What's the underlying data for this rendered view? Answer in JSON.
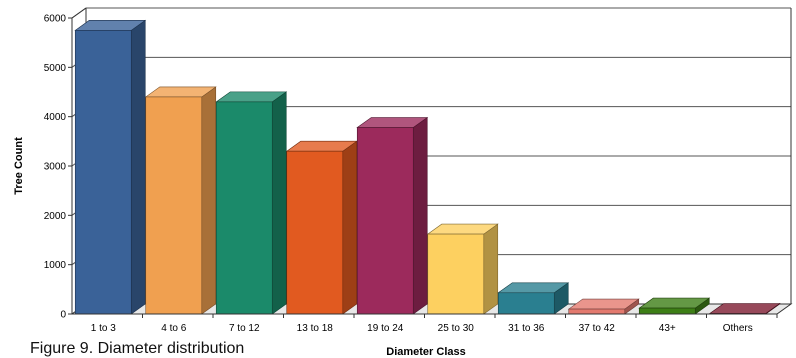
{
  "caption": "Figure 9. Diameter distribution",
  "chart_data": {
    "type": "bar",
    "title": "",
    "xlabel": "Diameter Class",
    "ylabel": "Tree Count",
    "ylim": [
      0,
      6000
    ],
    "yticks": [
      0,
      1000,
      2000,
      3000,
      4000,
      5000,
      6000
    ],
    "grid": true,
    "legend": "none",
    "categories": [
      "1 to 3",
      "4 to 6",
      "7 to 12",
      "13 to 18",
      "19 to 24",
      "25 to 30",
      "31 to 36",
      "37 to 42",
      "43+",
      "Others"
    ],
    "values": [
      5750,
      4400,
      4300,
      3300,
      3780,
      1620,
      430,
      100,
      120,
      10
    ],
    "colors": [
      "#3a6298",
      "#f0a050",
      "#1b8a6a",
      "#e15a20",
      "#9c2a5c",
      "#fdd060",
      "#2a7f90",
      "#e37a6f",
      "#3d7e16",
      "#7d1c31"
    ]
  }
}
